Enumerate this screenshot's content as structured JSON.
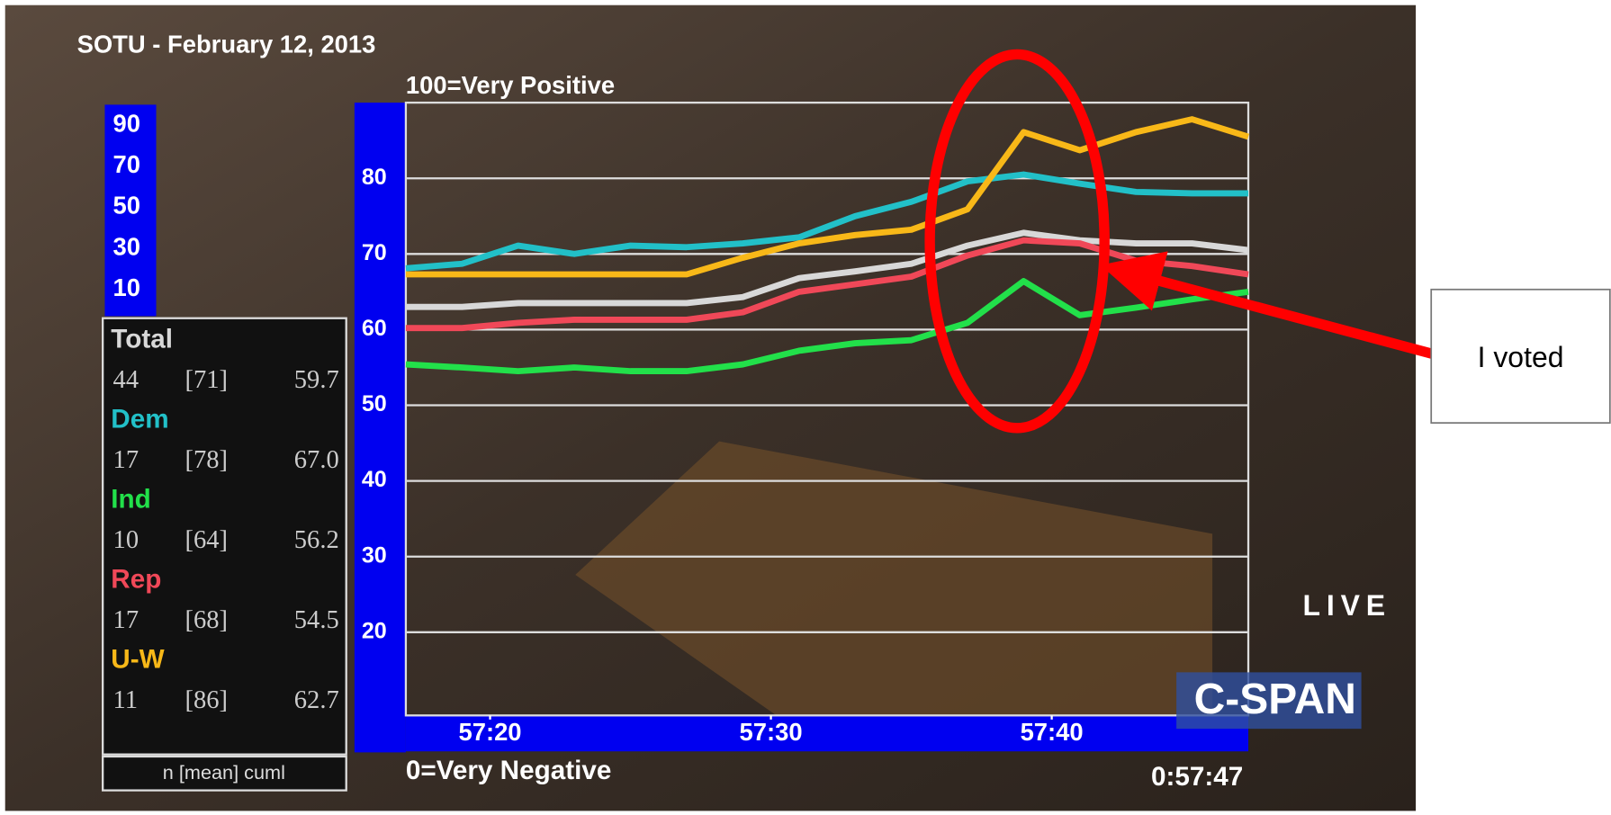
{
  "chart_data": {
    "type": "line",
    "title": "SOTU - February 12, 2013",
    "annotations": [
      "100=Very Positive",
      "0=Very Negative"
    ],
    "x": [
      3437,
      3439,
      3441,
      3443,
      3445,
      3447,
      3449,
      3451,
      3453,
      3455,
      3457,
      3459,
      3461,
      3463,
      3465,
      3467
    ],
    "xlim": [
      3437,
      3467
    ],
    "xticks": [
      {
        "value": 3440,
        "label": "57:20"
      },
      {
        "value": 3450,
        "label": "57:30"
      },
      {
        "value": 3460,
        "label": "57:40"
      }
    ],
    "ylim": [
      9,
      90
    ],
    "yticks": [
      20,
      30,
      40,
      50,
      60,
      70,
      80
    ],
    "grid": true,
    "series": [
      {
        "name": "Total",
        "color": "#d8d8d8",
        "values": [
          63,
          63,
          63.5,
          63.5,
          63.5,
          63.5,
          64.3,
          66.8,
          67.7,
          68.7,
          71.1,
          72.8,
          71.8,
          71.4,
          71.4,
          70.5
        ]
      },
      {
        "name": "Dem",
        "color": "#22c0c8",
        "values": [
          68.1,
          68.7,
          71.1,
          70,
          71.1,
          70.9,
          71.4,
          72.2,
          75,
          76.9,
          79.6,
          80.5,
          79.3,
          78.2,
          78,
          78
        ]
      },
      {
        "name": "Ind",
        "color": "#22e04a",
        "values": [
          55.4,
          55,
          54.5,
          55,
          54.5,
          54.5,
          55.4,
          57.2,
          58.2,
          58.6,
          60.9,
          66.4,
          61.9,
          62.9,
          64,
          65
        ]
      },
      {
        "name": "Rep",
        "color": "#f04858",
        "values": [
          60.2,
          60.2,
          60.9,
          61.3,
          61.3,
          61.3,
          62.3,
          65,
          66,
          67,
          69.8,
          71.8,
          71.4,
          69.1,
          68.4,
          67.3
        ]
      },
      {
        "name": "U-W",
        "color": "#f8b818",
        "values": [
          67.3,
          67.3,
          67.3,
          67.3,
          67.3,
          67.3,
          69.5,
          71.4,
          72.5,
          73.2,
          75.9,
          86.1,
          83.7,
          86.1,
          87.8,
          85.5
        ]
      }
    ]
  },
  "panel": {
    "scale_labels": [
      90,
      70,
      50,
      30,
      10
    ],
    "rows": [
      [
        "44",
        "[71]",
        "59.7"
      ],
      [
        "17",
        "[78]",
        "67.0"
      ],
      [
        "10",
        "[64]",
        "56.2"
      ],
      [
        "17",
        "[68]",
        "54.5"
      ],
      [
        "11",
        "[86]",
        "62.7"
      ]
    ],
    "footer": "n [mean] cuml"
  },
  "overlay": {
    "live": "LIVE",
    "network": "C-SPAN",
    "clock": "0:57:47"
  },
  "annotation": "I voted"
}
